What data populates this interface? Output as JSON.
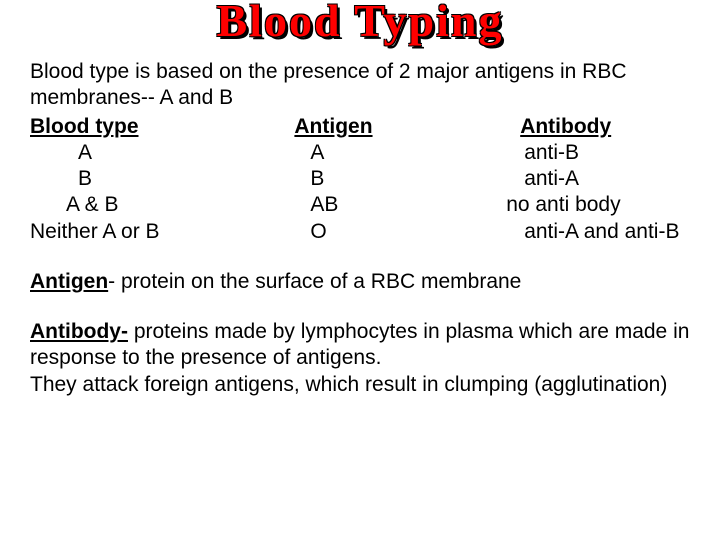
{
  "title": "Blood Typing",
  "colors": {
    "title_fill": "#ff0000",
    "title_outline": "#000000",
    "text": "#000000",
    "background": "#ffffff"
  },
  "fonts": {
    "title_family": "Times New Roman",
    "title_size_pt": 36,
    "body_family": "Arial",
    "body_size_pt": 16
  },
  "intro": "Blood type is based on the presence of 2 major antigens in RBC membranes-- A and B",
  "table": {
    "headers": {
      "col1": "Blood type",
      "col2": "Antigen",
      "col3": "Antibody"
    },
    "rows": [
      {
        "col1": "A",
        "col2": "A",
        "col3": "anti-B"
      },
      {
        "col1": "B",
        "col2": "B",
        "col3": "anti-A"
      },
      {
        "col1": "A & B",
        "col2": "AB",
        "col3": "no anti body"
      },
      {
        "col1": "Neither A or B",
        "col2": "O",
        "col3": "anti-A and anti-B"
      }
    ]
  },
  "definitions": {
    "antigen": {
      "term": "Antigen",
      "sep": "- ",
      "text": "protein on the surface of a RBC membrane"
    },
    "antibody": {
      "term": "Antibody-",
      "text1": " proteins made by lymphocytes in plasma which are made in response to the presence of antigens.",
      "text2": "They attack foreign antigens, which result in clumping (agglutination)"
    }
  }
}
